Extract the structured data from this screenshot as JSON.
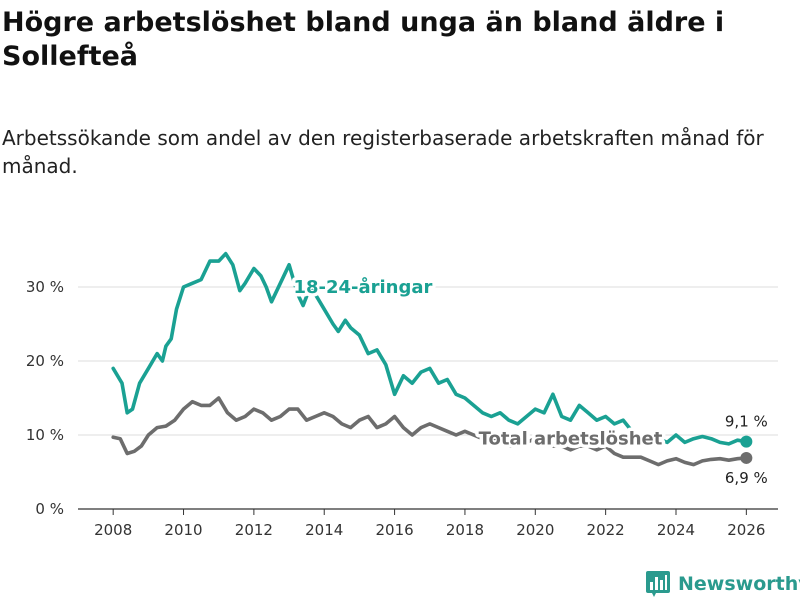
{
  "title": "Högre arbetslöshet bland unga än bland äldre i Sollefteå",
  "subtitle": "Arbetssökande som andel av den registerbaserade arbetskraften månad för månad.",
  "brand": {
    "name": "Newsworthy",
    "icon": "bar-chart-icon",
    "color": "#2a9a8e"
  },
  "chart_data": {
    "type": "line",
    "title": "Högre arbetslöshet bland unga än bland äldre i Sollefteå",
    "xlabel": "",
    "ylabel": "",
    "xlim": [
      2007.0,
      2026.9
    ],
    "ylim": [
      0,
      35
    ],
    "x_ticks": [
      2008,
      2010,
      2012,
      2014,
      2016,
      2018,
      2020,
      2022,
      2024,
      2026
    ],
    "x_tick_labels": [
      "2008",
      "2010",
      "2012",
      "2014",
      "2016",
      "2018",
      "2020",
      "2022",
      "2024",
      "2026"
    ],
    "y_ticks": [
      0,
      10,
      20,
      30
    ],
    "y_tick_labels": [
      "0 %",
      "10 %",
      "20 %",
      "30 %"
    ],
    "grid": true,
    "series": [
      {
        "name": "18-24-åringar",
        "color": "#1aa193",
        "end_label": "9,1 %",
        "x": [
          2008.0,
          2008.25,
          2008.4,
          2008.55,
          2008.75,
          2009.0,
          2009.25,
          2009.4,
          2009.5,
          2009.65,
          2009.8,
          2010.0,
          2010.25,
          2010.5,
          2010.75,
          2011.0,
          2011.2,
          2011.4,
          2011.6,
          2011.75,
          2012.0,
          2012.2,
          2012.35,
          2012.5,
          2012.75,
          2013.0,
          2013.25,
          2013.4,
          2013.6,
          2013.75,
          2014.0,
          2014.25,
          2014.4,
          2014.6,
          2014.75,
          2015.0,
          2015.25,
          2015.5,
          2015.75,
          2016.0,
          2016.25,
          2016.5,
          2016.75,
          2017.0,
          2017.25,
          2017.5,
          2017.75,
          2018.0,
          2018.25,
          2018.5,
          2018.75,
          2019.0,
          2019.25,
          2019.5,
          2019.75,
          2020.0,
          2020.25,
          2020.5,
          2020.75,
          2021.0,
          2021.25,
          2021.5,
          2021.75,
          2022.0,
          2022.25,
          2022.5,
          2022.75,
          2023.0,
          2023.25,
          2023.5,
          2023.75,
          2024.0,
          2024.25,
          2024.5,
          2024.75,
          2025.0,
          2025.25,
          2025.5,
          2025.75,
          2026.0
        ],
        "y": [
          19.0,
          17.0,
          13.0,
          13.5,
          17.0,
          19.0,
          21.0,
          20.0,
          22.0,
          23.0,
          27.0,
          30.0,
          30.5,
          31.0,
          33.5,
          33.5,
          34.5,
          33.0,
          29.5,
          30.5,
          32.5,
          31.5,
          30.0,
          28.0,
          30.5,
          33.0,
          29.0,
          27.5,
          30.0,
          29.0,
          27.0,
          25.0,
          24.0,
          25.5,
          24.5,
          23.5,
          21.0,
          21.5,
          19.5,
          15.5,
          18.0,
          17.0,
          18.5,
          19.0,
          17.0,
          17.5,
          15.5,
          15.0,
          14.0,
          13.0,
          12.5,
          13.0,
          12.0,
          11.5,
          12.5,
          13.5,
          13.0,
          15.5,
          12.5,
          12.0,
          14.0,
          13.0,
          12.0,
          12.5,
          11.5,
          12.0,
          10.5,
          9.5,
          8.5,
          9.5,
          9.0,
          10.0,
          9.0,
          9.5,
          9.8,
          9.5,
          9.0,
          8.8,
          9.3,
          9.1
        ]
      },
      {
        "name": "Total arbetslöshet",
        "color": "#6d6d6d",
        "end_label": "6,9 %",
        "x": [
          2008.0,
          2008.2,
          2008.4,
          2008.6,
          2008.8,
          2009.0,
          2009.25,
          2009.5,
          2009.75,
          2010.0,
          2010.25,
          2010.5,
          2010.75,
          2011.0,
          2011.25,
          2011.5,
          2011.75,
          2012.0,
          2012.25,
          2012.5,
          2012.75,
          2013.0,
          2013.25,
          2013.5,
          2013.75,
          2014.0,
          2014.25,
          2014.5,
          2014.75,
          2015.0,
          2015.25,
          2015.5,
          2015.75,
          2016.0,
          2016.25,
          2016.5,
          2016.75,
          2017.0,
          2017.25,
          2017.5,
          2017.75,
          2018.0,
          2018.25,
          2018.5,
          2018.75,
          2019.0,
          2019.25,
          2019.5,
          2019.75,
          2020.0,
          2020.25,
          2020.5,
          2020.75,
          2021.0,
          2021.25,
          2021.5,
          2021.75,
          2022.0,
          2022.25,
          2022.5,
          2022.75,
          2023.0,
          2023.25,
          2023.5,
          2023.75,
          2024.0,
          2024.25,
          2024.5,
          2024.75,
          2025.0,
          2025.25,
          2025.5,
          2025.75,
          2026.0
        ],
        "y": [
          9.7,
          9.5,
          7.5,
          7.8,
          8.5,
          10.0,
          11.0,
          11.2,
          12.0,
          13.5,
          14.5,
          14.0,
          14.0,
          15.0,
          13.0,
          12.0,
          12.5,
          13.5,
          13.0,
          12.0,
          12.5,
          13.5,
          13.5,
          12.0,
          12.5,
          13.0,
          12.5,
          11.5,
          11.0,
          12.0,
          12.5,
          11.0,
          11.5,
          12.5,
          11.0,
          10.0,
          11.0,
          11.5,
          11.0,
          10.5,
          10.0,
          10.5,
          10.0,
          9.5,
          9.5,
          9.0,
          8.5,
          8.5,
          9.0,
          9.5,
          9.0,
          8.5,
          8.5,
          8.0,
          8.5,
          8.5,
          8.0,
          8.5,
          7.5,
          7.0,
          7.0,
          7.0,
          6.5,
          6.0,
          6.5,
          6.8,
          6.3,
          6.0,
          6.5,
          6.7,
          6.8,
          6.6,
          6.8,
          6.9
        ]
      }
    ],
    "annotations": [
      {
        "text": "18-24-åringar",
        "series": "18-24-åringar",
        "x": 2015.1,
        "y": 30.0
      },
      {
        "text": "Total arbetslöshet",
        "series": "Total arbetslöshet",
        "x": 2021.0,
        "y": 9.5
      }
    ]
  }
}
